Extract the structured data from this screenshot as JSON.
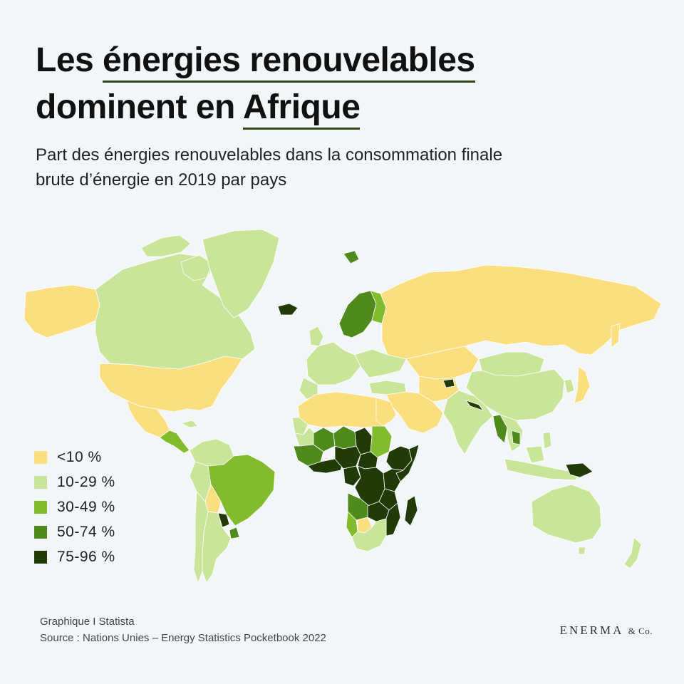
{
  "title": {
    "part1": "Les ",
    "part2": "énergies renouvelables",
    "part3": "dominent en ",
    "part4": "Afrique"
  },
  "subtitle": {
    "line1": "Part des énergies renouvelables dans la consommation finale",
    "line2": "brute d’énergie en 2019 par pays"
  },
  "legend": [
    {
      "label": "<10 %",
      "color": "#fbdf7f"
    },
    {
      "label": "10-29 %",
      "color": "#c8e59a"
    },
    {
      "label": "30-49 %",
      "color": "#82bb2d"
    },
    {
      "label": "50-74 %",
      "color": "#4e8b1c"
    },
    {
      "label": "75-96 %",
      "color": "#213b08"
    }
  ],
  "footer": {
    "line1": "Graphique I Statista",
    "line2": "Source : Nations Unies – Energy Statistics Pocketbook 2022"
  },
  "brand": {
    "name": "ENERMA",
    "suffix": "& Co."
  },
  "colors": {
    "background": "#f3f6f9",
    "ocean": "#f3f6f9",
    "border": "#ffffff"
  }
}
